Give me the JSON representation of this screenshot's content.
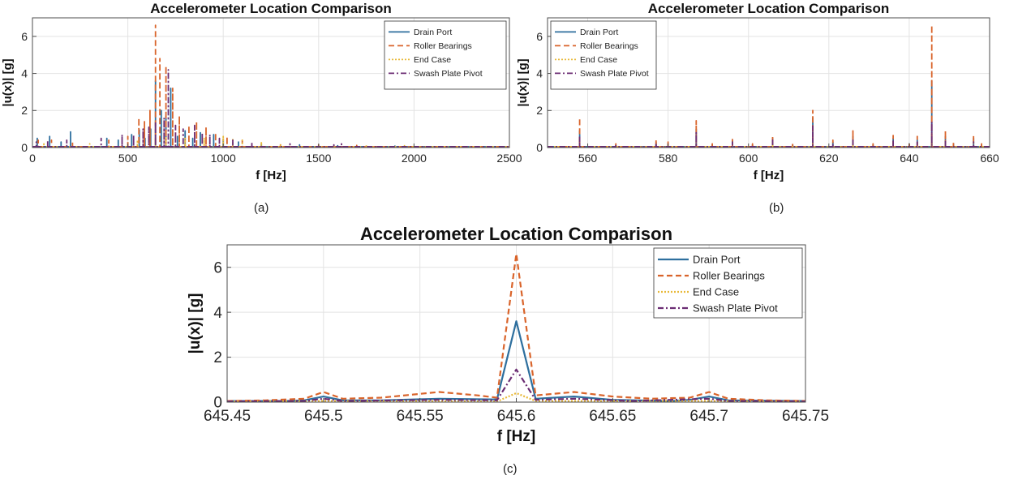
{
  "colors": {
    "drain_port": "#2e6f9e",
    "roller_bearings": "#d9642b",
    "end_case": "#e8b93a",
    "swash_plate_pivot": "#6b2c73"
  },
  "chart_data": [
    {
      "id": "a",
      "type": "line",
      "caption": "(a)",
      "title": "Accelerometer Location Comparison",
      "xlabel": "f [Hz]",
      "ylabel": "|u(x)| [g]",
      "xlim": [
        0,
        2500
      ],
      "ylim": [
        0,
        7
      ],
      "xticks": [
        0,
        500,
        1000,
        1500,
        2000,
        2500
      ],
      "yticks": [
        0,
        2,
        4,
        6
      ],
      "grid": true,
      "legend_position": "top-right",
      "series": [
        {
          "name": "Drain Port",
          "color": "#2e6f9e",
          "dash": "solid",
          "values": [
            [
              25,
              0.5
            ],
            [
              90,
              0.6
            ],
            [
              150,
              0.3
            ],
            [
              200,
              0.85
            ],
            [
              390,
              0.5
            ],
            [
              450,
              0.4
            ],
            [
              520,
              0.7
            ],
            [
              560,
              0.95
            ],
            [
              590,
              0.5
            ],
            [
              620,
              1.0
            ],
            [
              645,
              3.6
            ],
            [
              675,
              2.0
            ],
            [
              700,
              1.7
            ],
            [
              725,
              3.2
            ],
            [
              760,
              0.6
            ],
            [
              800,
              0.9
            ],
            [
              840,
              0.5
            ],
            [
              880,
              0.8
            ],
            [
              950,
              0.7
            ],
            [
              1000,
              0.45
            ],
            [
              1080,
              0.3
            ],
            [
              1200,
              0.2
            ],
            [
              1400,
              0.15
            ],
            [
              1600,
              0.1
            ],
            [
              1900,
              0.08
            ],
            [
              2200,
              0.05
            ]
          ]
        },
        {
          "name": "Roller Bearings",
          "color": "#d9642b",
          "dash": "dashed",
          "values": [
            [
              30,
              0.4
            ],
            [
              100,
              0.4
            ],
            [
              210,
              0.3
            ],
            [
              400,
              0.4
            ],
            [
              500,
              0.6
            ],
            [
              558,
              1.6
            ],
            [
              587,
              1.4
            ],
            [
              616,
              2.0
            ],
            [
              645,
              6.6
            ],
            [
              668,
              4.8
            ],
            [
              700,
              4.4
            ],
            [
              735,
              3.2
            ],
            [
              770,
              1.7
            ],
            [
              820,
              1.2
            ],
            [
              860,
              1.4
            ],
            [
              910,
              1.1
            ],
            [
              960,
              0.8
            ],
            [
              1020,
              0.6
            ],
            [
              1100,
              0.4
            ],
            [
              1300,
              0.2
            ],
            [
              1500,
              0.15
            ],
            [
              1700,
              0.12
            ],
            [
              2000,
              0.08
            ]
          ]
        },
        {
          "name": "End Case",
          "color": "#e8b93a",
          "dash": "dotted",
          "values": [
            [
              60,
              0.2
            ],
            [
              300,
              0.2
            ],
            [
              550,
              0.4
            ],
            [
              645,
              0.4
            ],
            [
              700,
              0.6
            ],
            [
              800,
              0.5
            ],
            [
              900,
              0.5
            ],
            [
              1000,
              0.6
            ],
            [
              1050,
              0.5
            ],
            [
              1100,
              0.4
            ],
            [
              1200,
              0.3
            ],
            [
              1300,
              0.2
            ],
            [
              1750,
              0.15
            ],
            [
              1950,
              0.1
            ],
            [
              2100,
              0.08
            ]
          ]
        },
        {
          "name": "Swash Plate Pivot",
          "color": "#6b2c73",
          "dash": "dashdot",
          "values": [
            [
              20,
              0.3
            ],
            [
              80,
              0.4
            ],
            [
              180,
              0.4
            ],
            [
              360,
              0.5
            ],
            [
              470,
              0.7
            ],
            [
              530,
              0.7
            ],
            [
              580,
              1.0
            ],
            [
              610,
              1.1
            ],
            [
              645,
              1.4
            ],
            [
              690,
              1.6
            ],
            [
              712,
              4.2
            ],
            [
              750,
              1.2
            ],
            [
              790,
              1.0
            ],
            [
              850,
              1.2
            ],
            [
              890,
              0.8
            ],
            [
              930,
              0.7
            ],
            [
              980,
              0.5
            ],
            [
              1050,
              0.4
            ],
            [
              1150,
              0.3
            ],
            [
              1350,
              0.2
            ],
            [
              1580,
              0.15
            ],
            [
              1620,
              0.2
            ],
            [
              1800,
              0.1
            ],
            [
              2400,
              0.05
            ]
          ]
        }
      ]
    },
    {
      "id": "b",
      "type": "line",
      "caption": "(b)",
      "title": "Accelerometer Location Comparison",
      "xlabel": "f [Hz]",
      "ylabel": "|u(x)| [g]",
      "xlim": [
        550,
        660
      ],
      "ylim": [
        0,
        7
      ],
      "xticks": [
        560,
        580,
        600,
        620,
        640,
        660
      ],
      "yticks": [
        0,
        2,
        4,
        6
      ],
      "grid": true,
      "legend_position": "top-left",
      "series": [
        {
          "name": "Drain Port",
          "color": "#2e6f9e",
          "dash": "solid",
          "values": [
            [
              558,
              0.9
            ],
            [
              567,
              0.15
            ],
            [
              577,
              0.3
            ],
            [
              580,
              0.2
            ],
            [
              587,
              1.0
            ],
            [
              591,
              0.15
            ],
            [
              596,
              0.4
            ],
            [
              601,
              0.15
            ],
            [
              606,
              0.5
            ],
            [
              611,
              0.15
            ],
            [
              616,
              1.6
            ],
            [
              621,
              0.3
            ],
            [
              626,
              0.6
            ],
            [
              631,
              0.15
            ],
            [
              636,
              0.5
            ],
            [
              640,
              0.2
            ],
            [
              642,
              0.4
            ],
            [
              645.6,
              3.6
            ],
            [
              649,
              0.6
            ],
            [
              651,
              0.2
            ],
            [
              656,
              0.5
            ],
            [
              658,
              0.15
            ]
          ]
        },
        {
          "name": "Roller Bearings",
          "color": "#d9642b",
          "dash": "dashed",
          "values": [
            [
              558,
              1.6
            ],
            [
              567,
              0.2
            ],
            [
              577,
              0.4
            ],
            [
              580,
              0.3
            ],
            [
              587,
              1.45
            ],
            [
              591,
              0.2
            ],
            [
              596,
              0.5
            ],
            [
              601,
              0.2
            ],
            [
              606,
              0.6
            ],
            [
              611,
              0.2
            ],
            [
              616,
              2.0
            ],
            [
              621,
              0.4
            ],
            [
              626,
              0.9
            ],
            [
              631,
              0.2
            ],
            [
              636,
              0.65
            ],
            [
              640,
              0.3
            ],
            [
              642,
              0.6
            ],
            [
              645.6,
              6.6
            ],
            [
              649,
              0.9
            ],
            [
              651,
              0.3
            ],
            [
              656,
              0.65
            ],
            [
              658,
              0.2
            ]
          ]
        },
        {
          "name": "End Case",
          "color": "#e8b93a",
          "dash": "dotted",
          "values": [
            [
              558,
              0.2
            ],
            [
              587,
              0.2
            ],
            [
              606,
              0.15
            ],
            [
              616,
              0.25
            ],
            [
              626,
              0.15
            ],
            [
              645.6,
              0.4
            ],
            [
              649,
              0.15
            ],
            [
              656,
              0.12
            ]
          ]
        },
        {
          "name": "Swash Plate Pivot",
          "color": "#6b2c73",
          "dash": "dashdot",
          "values": [
            [
              558,
              0.6
            ],
            [
              567,
              0.1
            ],
            [
              577,
              0.2
            ],
            [
              587,
              0.8
            ],
            [
              596,
              0.3
            ],
            [
              606,
              0.4
            ],
            [
              616,
              1.2
            ],
            [
              621,
              0.2
            ],
            [
              626,
              0.4
            ],
            [
              636,
              0.35
            ],
            [
              642,
              0.3
            ],
            [
              645.6,
              1.4
            ],
            [
              649,
              0.4
            ],
            [
              656,
              0.3
            ]
          ]
        }
      ]
    },
    {
      "id": "c",
      "type": "line",
      "caption": "(c)",
      "title": "Accelerometer Location Comparison",
      "xlabel": "f [Hz]",
      "ylabel": "|u(x)| [g]",
      "xlim": [
        645.45,
        645.75
      ],
      "ylim": [
        0,
        7
      ],
      "xticks": [
        645.45,
        645.5,
        645.55,
        645.6,
        645.65,
        645.7,
        645.75
      ],
      "xticklabels": [
        "645.45",
        "645.5",
        "645.55",
        "645.6",
        "645.65",
        "645.7",
        "645.75"
      ],
      "yticks": [
        0,
        2,
        4,
        6
      ],
      "grid": true,
      "legend_position": "top-right",
      "series": [
        {
          "name": "Drain Port",
          "color": "#2e6f9e",
          "dash": "solid",
          "values": [
            [
              645.45,
              0.05
            ],
            [
              645.48,
              0.05
            ],
            [
              645.49,
              0.08
            ],
            [
              645.5,
              0.25
            ],
            [
              645.51,
              0.08
            ],
            [
              645.53,
              0.08
            ],
            [
              645.56,
              0.15
            ],
            [
              645.59,
              0.12
            ],
            [
              645.6,
              3.6
            ],
            [
              645.61,
              0.15
            ],
            [
              645.63,
              0.25
            ],
            [
              645.65,
              0.1
            ],
            [
              645.68,
              0.05
            ],
            [
              645.69,
              0.1
            ],
            [
              645.7,
              0.25
            ],
            [
              645.71,
              0.08
            ],
            [
              645.75,
              0.05
            ]
          ]
        },
        {
          "name": "Roller Bearings",
          "color": "#d9642b",
          "dash": "dashed",
          "values": [
            [
              645.45,
              0.05
            ],
            [
              645.47,
              0.08
            ],
            [
              645.49,
              0.15
            ],
            [
              645.5,
              0.45
            ],
            [
              645.51,
              0.15
            ],
            [
              645.53,
              0.2
            ],
            [
              645.56,
              0.45
            ],
            [
              645.58,
              0.3
            ],
            [
              645.59,
              0.2
            ],
            [
              645.6,
              6.6
            ],
            [
              645.61,
              0.3
            ],
            [
              645.63,
              0.45
            ],
            [
              645.65,
              0.25
            ],
            [
              645.67,
              0.15
            ],
            [
              645.69,
              0.2
            ],
            [
              645.7,
              0.45
            ],
            [
              645.71,
              0.15
            ],
            [
              645.73,
              0.08
            ],
            [
              645.75,
              0.05
            ]
          ]
        },
        {
          "name": "End Case",
          "color": "#e8b93a",
          "dash": "dotted",
          "values": [
            [
              645.45,
              0.02
            ],
            [
              645.5,
              0.05
            ],
            [
              645.55,
              0.05
            ],
            [
              645.59,
              0.03
            ],
            [
              645.6,
              0.4
            ],
            [
              645.61,
              0.05
            ],
            [
              645.65,
              0.05
            ],
            [
              645.7,
              0.05
            ],
            [
              645.75,
              0.02
            ]
          ]
        },
        {
          "name": "Swash Plate Pivot",
          "color": "#6b2c73",
          "dash": "dashdot",
          "values": [
            [
              645.45,
              0.03
            ],
            [
              645.49,
              0.05
            ],
            [
              645.5,
              0.15
            ],
            [
              645.51,
              0.05
            ],
            [
              645.56,
              0.1
            ],
            [
              645.59,
              0.08
            ],
            [
              645.6,
              1.45
            ],
            [
              645.61,
              0.1
            ],
            [
              645.63,
              0.15
            ],
            [
              645.66,
              0.05
            ],
            [
              645.7,
              0.15
            ],
            [
              645.71,
              0.05
            ],
            [
              645.75,
              0.03
            ]
          ]
        }
      ]
    }
  ]
}
